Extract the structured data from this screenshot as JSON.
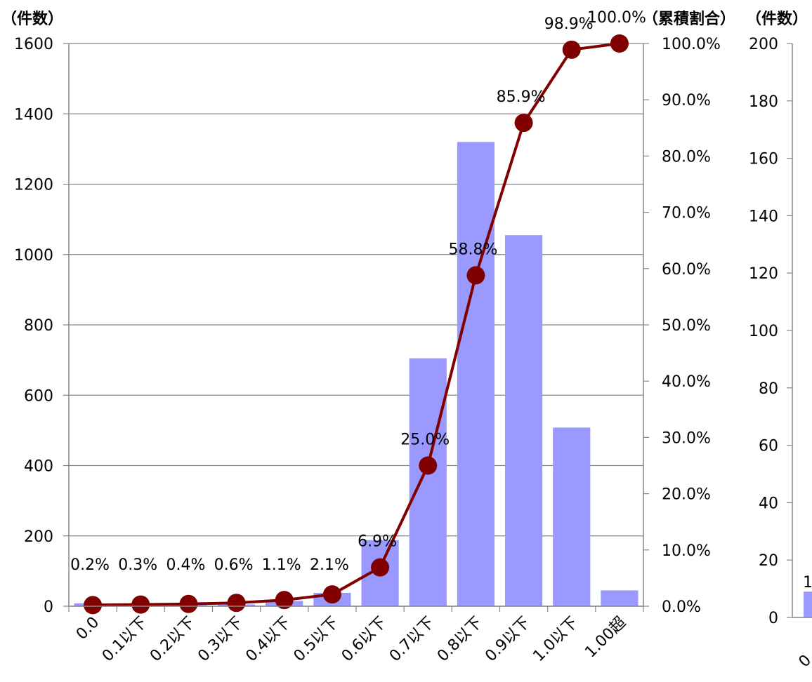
{
  "page": {
    "background": "#ffffff"
  },
  "chart_data": [
    {
      "type": "bar",
      "categories": [
        "0.0",
        "0.1以下",
        "0.2以下",
        "0.3以下",
        "0.4以下",
        "0.5以下",
        "0.6以下",
        "0.7以下",
        "0.8以下",
        "0.9以下",
        "1.0以下",
        "1.00超"
      ],
      "series": [
        {
          "values": [
            8,
            3,
            3,
            5,
            15,
            38,
            188,
            705,
            1320,
            1055,
            508,
            45
          ],
          "color": "#9999ff",
          "axis": "left"
        },
        {
          "type": "line",
          "values": [
            0.2,
            0.3,
            0.4,
            0.6,
            1.1,
            2.1,
            6.9,
            25.0,
            58.8,
            85.9,
            98.9,
            100.0
          ],
          "color": "#800000",
          "axis": "right",
          "marker": "circle"
        }
      ],
      "data_labels": [
        "0.2%",
        "0.3%",
        "0.4%",
        "0.6%",
        "1.1%",
        "2.1%",
        "6.9%",
        "25.0%",
        "58.8%",
        "85.9%",
        "98.9%",
        "100.0%"
      ],
      "ylabel_left": "（件数）",
      "ylabel_right": "（累積割合）",
      "ylim_left": [
        0,
        1600
      ],
      "ylim_right": [
        0,
        100
      ],
      "yticks_left": [
        "0",
        "200",
        "400",
        "600",
        "800",
        "1000",
        "1200",
        "1400",
        "1600"
      ],
      "yticks_right": [
        "0.0%",
        "10.0%",
        "20.0%",
        "30.0%",
        "40.0%",
        "50.0%",
        "60.0%",
        "70.0%",
        "80.0%",
        "90.0%",
        "100.0%"
      ],
      "grid": true
    },
    {
      "type": "bar",
      "ylabel": "（件数）",
      "ylim": [
        0,
        200
      ],
      "yticks": [
        "0",
        "20",
        "40",
        "60",
        "80",
        "100",
        "120",
        "140",
        "160",
        "180",
        "200"
      ],
      "visible_bar_values": [
        9
      ],
      "visible_data_label": "1",
      "visible_category": "0",
      "bar_color": "#9999ff"
    }
  ]
}
